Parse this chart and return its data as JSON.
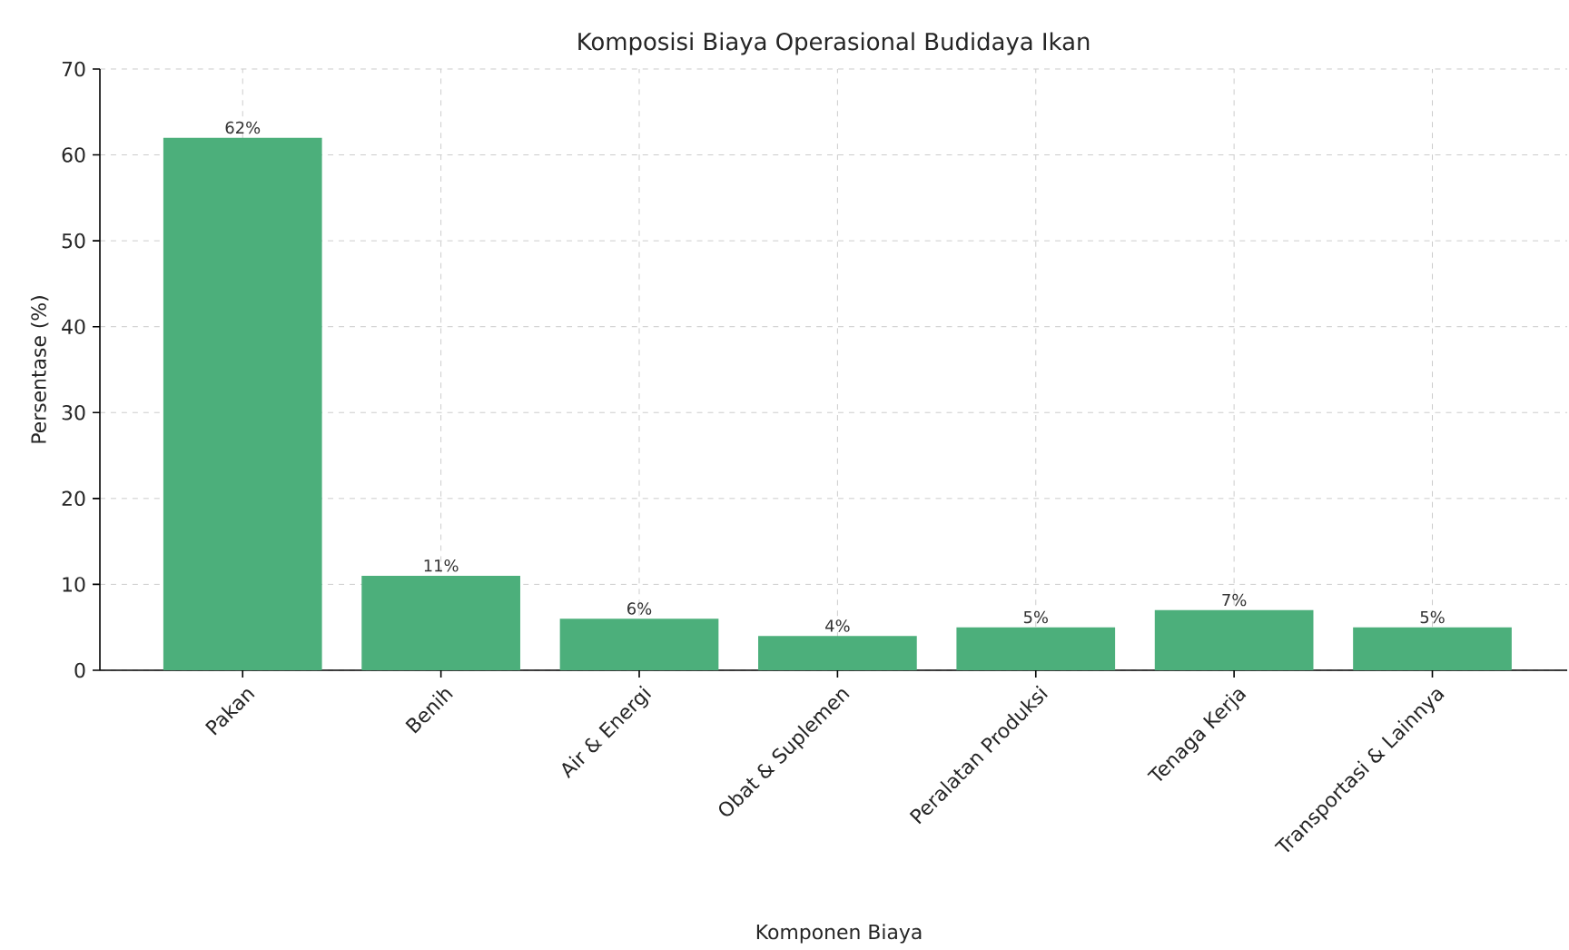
{
  "chart_data": {
    "type": "bar",
    "title": "Komposisi Biaya Operasional Budidaya Ikan",
    "xlabel": "Komponen Biaya",
    "ylabel": "Persentase (%)",
    "categories": [
      "Pakan",
      "Benih",
      "Air & Energi",
      "Obat & Suplemen",
      "Peralatan Produksi",
      "Tenaga Kerja",
      "Transportasi & Lainnya"
    ],
    "values": [
      62,
      11,
      6,
      4,
      5,
      7,
      5
    ],
    "value_labels": [
      "62%",
      "11%",
      "6%",
      "4%",
      "5%",
      "7%",
      "5%"
    ],
    "color": "#4caf7b",
    "ylim": [
      0,
      70
    ],
    "yticks": [
      0,
      10,
      20,
      30,
      40,
      50,
      60,
      70
    ],
    "grid": true
  }
}
